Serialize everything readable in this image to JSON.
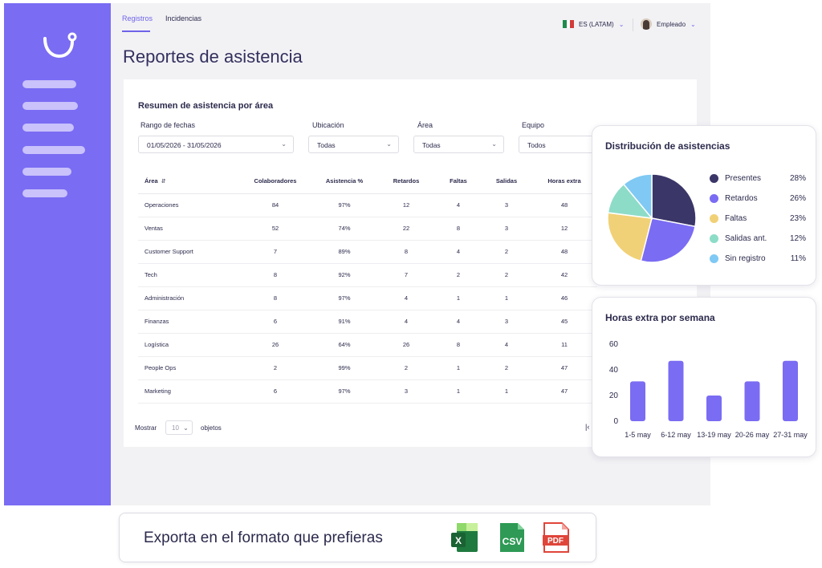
{
  "tabs": [
    {
      "label": "Registros",
      "active": true
    },
    {
      "label": "Incidencias",
      "active": false
    }
  ],
  "language": {
    "label": "ES (LATAM)",
    "flag": "mexico-flag-icon"
  },
  "user": {
    "label": "Empleado"
  },
  "page_title": "Reportes de asistencia",
  "summary": {
    "title": "Resumen de asistencia por área",
    "filters": [
      {
        "label": "Rango de fechas",
        "value": "01/05/2026 - 31/05/2026"
      },
      {
        "label": "Ubicación",
        "value": "Todas"
      },
      {
        "label": "Área",
        "value": "Todas"
      },
      {
        "label": "Equipo",
        "value": "Todos"
      }
    ],
    "columns": [
      "Área",
      "Colaboradores",
      "Asistencia %",
      "Retardos",
      "Faltas",
      "Salidas",
      "Horas extra"
    ],
    "rows": [
      [
        "Operaciones",
        "84",
        "97%",
        "12",
        "4",
        "3",
        "48"
      ],
      [
        "Ventas",
        "52",
        "74%",
        "22",
        "8",
        "3",
        "12"
      ],
      [
        "Customer Support",
        "7",
        "89%",
        "8",
        "4",
        "2",
        "48"
      ],
      [
        "Tech",
        "8",
        "92%",
        "7",
        "2",
        "2",
        "42"
      ],
      [
        "Administración",
        "8",
        "97%",
        "4",
        "1",
        "1",
        "46"
      ],
      [
        "Finanzas",
        "6",
        "91%",
        "4",
        "4",
        "3",
        "45"
      ],
      [
        "Logística",
        "26",
        "64%",
        "26",
        "8",
        "4",
        "11"
      ],
      [
        "People Ops",
        "2",
        "99%",
        "2",
        "1",
        "2",
        "47"
      ],
      [
        "Marketing",
        "6",
        "97%",
        "3",
        "1",
        "1",
        "47"
      ]
    ],
    "pagination": {
      "show_label": "Mostrar",
      "per_page": "10",
      "objects_label": "objetos"
    }
  },
  "distribution": {
    "title": "Distribución de asistencias",
    "chart_data": {
      "type": "pie",
      "slices": [
        {
          "label": "Presentes",
          "value": 28,
          "display": "28%",
          "color": "#3b3668"
        },
        {
          "label": "Retardos",
          "value": 26,
          "display": "26%",
          "color": "#7a6cf3"
        },
        {
          "label": "Faltas",
          "value": 23,
          "display": "23%",
          "color": "#f1d177"
        },
        {
          "label": "Salidas ant.",
          "value": 12,
          "display": "12%",
          "color": "#8ddcc8"
        },
        {
          "label": "Sin registro",
          "value": 11,
          "display": "11%",
          "color": "#7fc9f4"
        }
      ]
    }
  },
  "overtime": {
    "title": "Horas extra por semana",
    "chart_data": {
      "type": "bar",
      "categories": [
        "1-5 may",
        "6-12 may",
        "13-19 may",
        "20-26 may",
        "27-31 may"
      ],
      "values": [
        31,
        47,
        20,
        31,
        47
      ],
      "ylim": [
        0,
        60
      ],
      "yticks": [
        "0",
        "20",
        "40",
        "60"
      ],
      "color": "#7a6cf3"
    }
  },
  "export": {
    "text": "Exporta en el formato que prefieras",
    "formats": [
      {
        "label": "X",
        "icon": "excel-icon",
        "color": "#1f7a3f"
      },
      {
        "label": "CSV",
        "icon": "csv-icon",
        "color": "#2e9a55"
      },
      {
        "label": "PDF",
        "icon": "pdf-icon",
        "color": "#e0453a"
      }
    ]
  }
}
